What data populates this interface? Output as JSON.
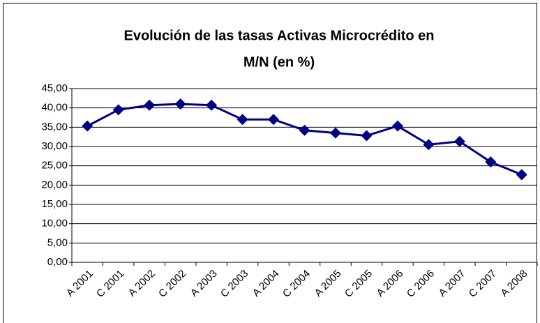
{
  "chart_data": {
    "type": "line",
    "title": [
      "Evolución de las tasas Activas Microcrédito en",
      "M/N (en %)"
    ],
    "categories": [
      "A 2001",
      "C 2001",
      "A 2002",
      "C 2002",
      "A 2003",
      "C 2003",
      "A 2004",
      "C 2004",
      "A 2005",
      "C 2005",
      "A 2006",
      "C 2006",
      "A 2007",
      "C 2007",
      "A 2008"
    ],
    "series": [
      {
        "color": "#000080",
        "values": [
          35.3,
          39.5,
          40.7,
          41.0,
          40.7,
          37.0,
          37.0,
          34.2,
          33.5,
          32.8,
          35.3,
          30.5,
          31.3,
          26.0,
          22.7
        ]
      }
    ],
    "ylim": [
      0,
      45
    ],
    "yticks": [
      {
        "value": 0,
        "label": "0,00"
      },
      {
        "value": 5,
        "label": "5,00"
      },
      {
        "value": 10,
        "label": "10,00"
      },
      {
        "value": 15,
        "label": "15,00"
      },
      {
        "value": 20,
        "label": "20,00"
      },
      {
        "value": 25,
        "label": "25,00"
      },
      {
        "value": 30,
        "label": "30,00"
      },
      {
        "value": 35,
        "label": "35,00"
      },
      {
        "value": 40,
        "label": "40,00"
      },
      {
        "value": 45,
        "label": "45,00"
      }
    ],
    "grid": true
  }
}
